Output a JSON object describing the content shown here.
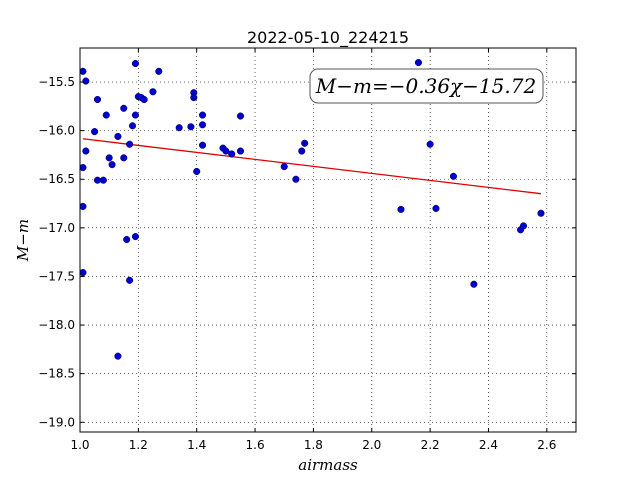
{
  "chart_data": {
    "type": "scatter",
    "title": "2022-05-10_224215",
    "xlabel": "airmass",
    "ylabel": "M−m",
    "xlim": [
      1.0,
      2.7
    ],
    "ylim": [
      -19.1,
      -15.15
    ],
    "y_inverted": true,
    "grid": true,
    "xticks": [
      1.0,
      1.2,
      1.4,
      1.6,
      1.8,
      2.0,
      2.2,
      2.4,
      2.6
    ],
    "xtick_labels": [
      "1.0",
      "1.2",
      "1.4",
      "1.6",
      "1.8",
      "2.0",
      "2.2",
      "2.4",
      "2.6"
    ],
    "yticks": [
      -15.5,
      -16.0,
      -16.5,
      -17.0,
      -17.5,
      -18.0,
      -18.5,
      -19.0
    ],
    "ytick_labels": [
      "−15.5",
      "−16.0",
      "−16.5",
      "−17.0",
      "−17.5",
      "−18.0",
      "−18.5",
      "−19.0"
    ],
    "annotation": "M−m=−0.36χ−15.72",
    "colors": {
      "points": "#0000cc",
      "fit": "#dd0000"
    },
    "fit": {
      "slope": -0.36,
      "intercept": -15.72,
      "x_range": [
        1.01,
        2.58
      ]
    },
    "points": [
      {
        "x": 1.01,
        "y": -15.39
      },
      {
        "x": 1.02,
        "y": -15.49
      },
      {
        "x": 1.01,
        "y": -16.38
      },
      {
        "x": 1.02,
        "y": -16.21
      },
      {
        "x": 1.01,
        "y": -16.78
      },
      {
        "x": 1.01,
        "y": -17.46
      },
      {
        "x": 1.05,
        "y": -16.01
      },
      {
        "x": 1.06,
        "y": -15.68
      },
      {
        "x": 1.06,
        "y": -16.51
      },
      {
        "x": 1.08,
        "y": -16.51
      },
      {
        "x": 1.09,
        "y": -15.84
      },
      {
        "x": 1.1,
        "y": -16.28
      },
      {
        "x": 1.11,
        "y": -16.35
      },
      {
        "x": 1.13,
        "y": -16.06
      },
      {
        "x": 1.13,
        "y": -18.32
      },
      {
        "x": 1.15,
        "y": -16.28
      },
      {
        "x": 1.15,
        "y": -15.77
      },
      {
        "x": 1.16,
        "y": -17.12
      },
      {
        "x": 1.17,
        "y": -16.14
      },
      {
        "x": 1.17,
        "y": -17.54
      },
      {
        "x": 1.18,
        "y": -15.95
      },
      {
        "x": 1.19,
        "y": -15.84
      },
      {
        "x": 1.19,
        "y": -17.09
      },
      {
        "x": 1.19,
        "y": -15.31
      },
      {
        "x": 1.2,
        "y": -15.65
      },
      {
        "x": 1.21,
        "y": -15.66
      },
      {
        "x": 1.22,
        "y": -15.68
      },
      {
        "x": 1.25,
        "y": -15.6
      },
      {
        "x": 1.27,
        "y": -15.39
      },
      {
        "x": 1.34,
        "y": -15.97
      },
      {
        "x": 1.38,
        "y": -15.96
      },
      {
        "x": 1.39,
        "y": -15.61
      },
      {
        "x": 1.39,
        "y": -15.66
      },
      {
        "x": 1.4,
        "y": -16.42
      },
      {
        "x": 1.42,
        "y": -15.84
      },
      {
        "x": 1.42,
        "y": -15.94
      },
      {
        "x": 1.42,
        "y": -16.15
      },
      {
        "x": 1.49,
        "y": -16.18
      },
      {
        "x": 1.5,
        "y": -16.21
      },
      {
        "x": 1.52,
        "y": -16.24
      },
      {
        "x": 1.55,
        "y": -15.85
      },
      {
        "x": 1.55,
        "y": -16.21
      },
      {
        "x": 1.7,
        "y": -16.37
      },
      {
        "x": 1.74,
        "y": -16.5
      },
      {
        "x": 1.76,
        "y": -16.21
      },
      {
        "x": 1.77,
        "y": -16.13
      },
      {
        "x": 2.1,
        "y": -16.81
      },
      {
        "x": 2.16,
        "y": -15.3
      },
      {
        "x": 2.2,
        "y": -16.14
      },
      {
        "x": 2.22,
        "y": -16.8
      },
      {
        "x": 2.28,
        "y": -16.47
      },
      {
        "x": 2.35,
        "y": -17.58
      },
      {
        "x": 2.51,
        "y": -17.02
      },
      {
        "x": 2.52,
        "y": -16.98
      },
      {
        "x": 2.58,
        "y": -16.85
      }
    ]
  }
}
